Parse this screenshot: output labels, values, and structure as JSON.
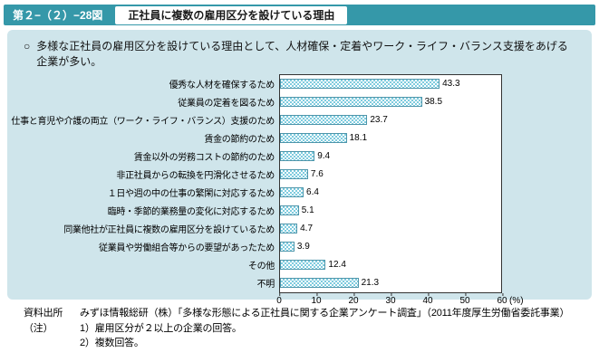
{
  "header": {
    "figure_label": "第２−（２）−28図",
    "title": "正社員に複数の雇用区分を設けている理由"
  },
  "intro": {
    "bullet": "○",
    "text": "多様な正社員の雇用区分を設けている理由として、人材確保・定着やワーク・ライフ・バランス支援をあげる企業が多い。"
  },
  "chart_data": {
    "type": "bar",
    "orientation": "horizontal",
    "categories": [
      "優秀な人材を確保するため",
      "従業員の定着を図るため",
      "仕事と育児や介護の両立（ワーク・ライフ・バランス）支援のため",
      "賃金の節約のため",
      "賃金以外の労務コストの節約のため",
      "非正社員からの転換を円滑化させるため",
      "１日や週の中の仕事の繁閑に対応するため",
      "臨時・季節的業務量の変化に対応するため",
      "同業他社が正社員に複数の雇用区分を設けているため",
      "従業員や労働組合等からの要望があったため",
      "その他",
      "不明"
    ],
    "values": [
      43.3,
      38.5,
      23.7,
      18.1,
      9.4,
      7.6,
      6.4,
      5.1,
      4.7,
      3.9,
      12.4,
      21.3
    ],
    "xlim": [
      0,
      60
    ],
    "x_ticks": [
      0,
      10,
      20,
      30,
      40,
      50,
      60
    ],
    "x_unit": "(%)",
    "grid": false,
    "legend": false
  },
  "footer": {
    "source_label": "資料出所",
    "source_text": "みずほ情報総研（株）「多様な形態による正社員に関する企業アンケート調査」（2011年度厚生労働省委託事業）",
    "note_label": "（注）",
    "notes": [
      "1）雇用区分が２以上の企業の回答。",
      "2）複数回答。"
    ]
  },
  "colors": {
    "header_teal": "#3598a9",
    "panel_blue": "#cfe5eb",
    "bar_fill": "#7ecbde",
    "bar_border": "#4d95aa"
  }
}
